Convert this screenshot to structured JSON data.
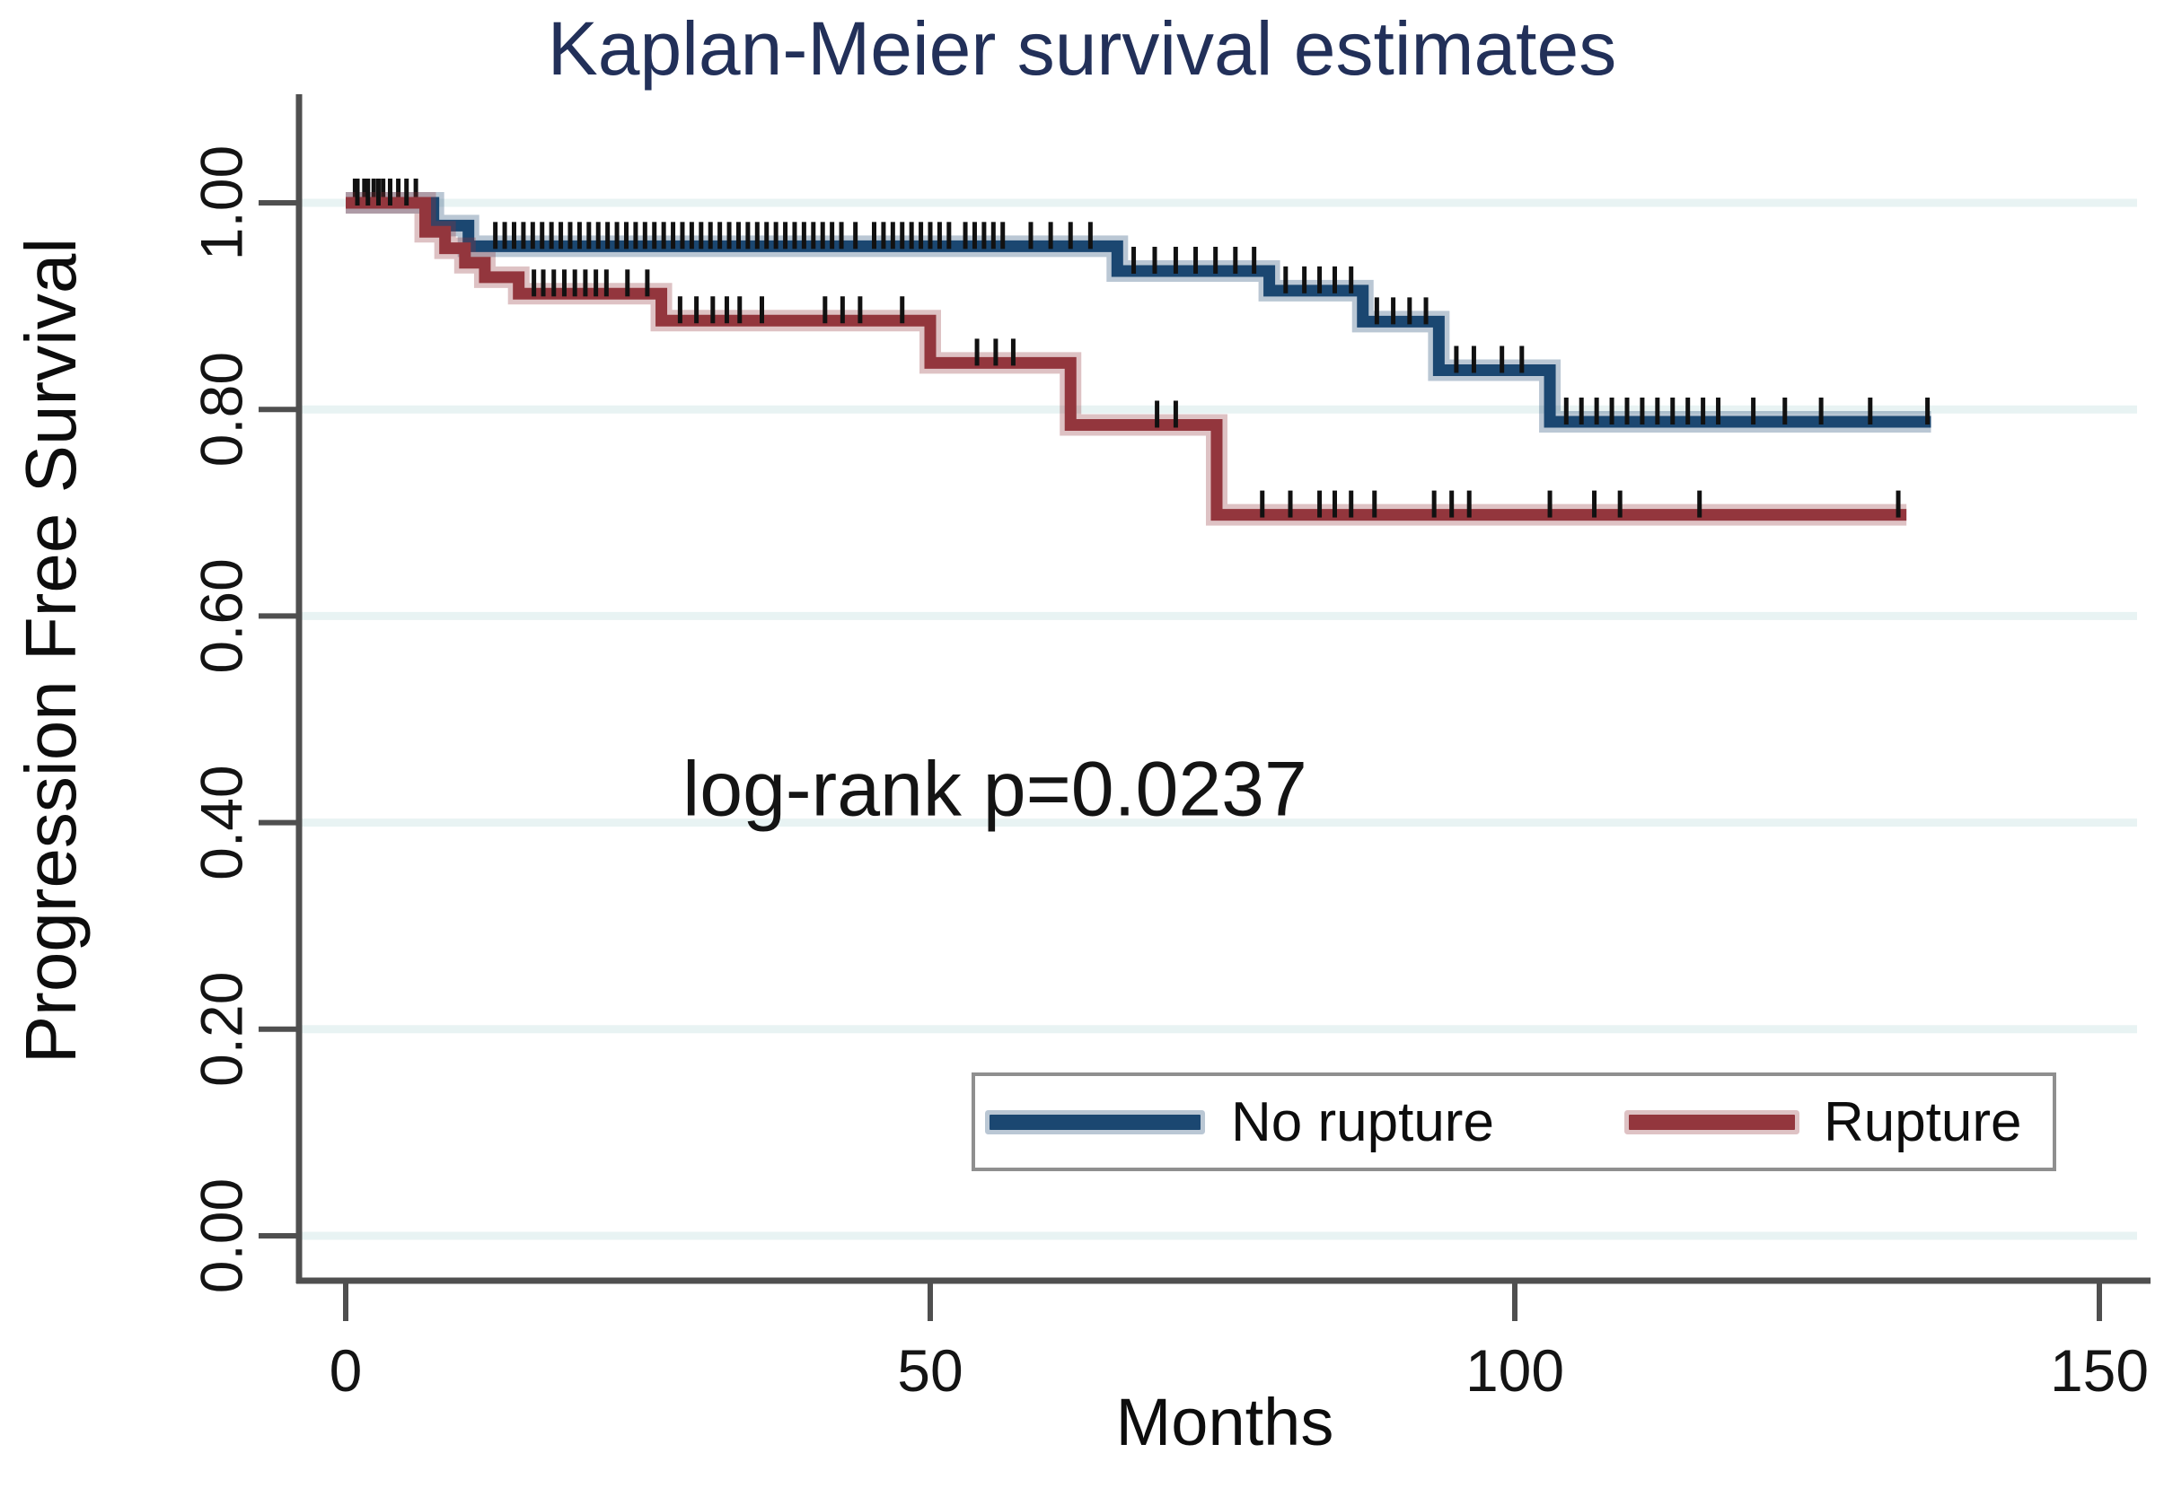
{
  "title": {
    "text": "Kaplan-Meier survival estimates",
    "color": "#223059"
  },
  "axes": {
    "y_label": "Progression Free Survival",
    "x_label": "Months",
    "y_tick_labels": [
      "1.00",
      "0.80",
      "0.60",
      "0.40",
      "0.20",
      "0.00"
    ],
    "x_tick_labels": [
      "0",
      "50",
      "100",
      "150"
    ]
  },
  "annotation": "log-rank p=0.0237",
  "legend": {
    "items": [
      {
        "label": "No rupture",
        "color": "#1b4771"
      },
      {
        "label": "Rupture",
        "color": "#93363d"
      }
    ]
  },
  "colors": {
    "grid": "#e8f3f3",
    "axis": "#4f4f4f",
    "censor": "#111111",
    "no_rupture": "#1b4771",
    "no_rupture_halo": "rgba(27,71,113,0.30)",
    "rupture": "#93363d",
    "rupture_halo": "rgba(147,54,61,0.30)"
  },
  "chart_data": {
    "type": "line",
    "subtype": "kaplan-meier-step",
    "title": "Kaplan-Meier survival estimates",
    "xlabel": "Months",
    "ylabel": "Progression Free Survival",
    "xlim": [
      0,
      150
    ],
    "ylim": [
      0.0,
      1.0
    ],
    "x_ticks": [
      [
        0,
        "0"
      ],
      [
        50,
        "50"
      ],
      [
        100,
        "100"
      ],
      [
        150,
        "150"
      ]
    ],
    "y_ticks": [
      [
        1.0,
        "1.00"
      ],
      [
        0.8,
        "0.80"
      ],
      [
        0.6,
        "0.60"
      ],
      [
        0.4,
        "0.40"
      ],
      [
        0.2,
        "0.20"
      ],
      [
        0.0,
        "0.00"
      ]
    ],
    "grid": "horizontal",
    "legend_position": "bottom-right-box",
    "annotation": {
      "text": "log-rank p=0.0237",
      "x_months": 55,
      "y_survival": 0.43
    },
    "series": [
      {
        "name": "No rupture",
        "steps": [
          [
            0,
            1.0
          ],
          [
            7.5,
            0.978
          ],
          [
            10.5,
            0.958
          ],
          [
            66,
            0.934
          ],
          [
            79,
            0.915
          ],
          [
            87,
            0.885
          ],
          [
            93.5,
            0.838
          ],
          [
            103,
            0.788
          ]
        ],
        "end_t": 135.6,
        "censors": [
          0.8,
          1.6,
          2.4,
          3.2,
          4.5,
          6.0,
          12.8,
          13.6,
          14.4,
          15.2,
          16.0,
          16.8,
          17.6,
          18.4,
          19.2,
          20.0,
          20.8,
          21.6,
          22.4,
          23.2,
          24.0,
          24.8,
          25.6,
          26.4,
          27.2,
          28.0,
          28.8,
          29.6,
          30.4,
          31.2,
          32.0,
          32.8,
          33.6,
          34.4,
          35.2,
          36.0,
          36.8,
          37.6,
          38.4,
          39.2,
          40.0,
          40.8,
          41.6,
          42.4,
          43.6,
          45.2,
          46.0,
          46.8,
          47.6,
          48.4,
          49.2,
          50.0,
          50.8,
          51.6,
          53.0,
          53.8,
          54.6,
          55.4,
          56.2,
          58.6,
          60.3,
          62.0,
          63.7,
          67.4,
          69.2,
          71.0,
          72.7,
          74.4,
          76.1,
          77.7,
          80.4,
          82.0,
          83.3,
          84.6,
          86.0,
          88.2,
          89.6,
          91.0,
          92.4,
          95.0,
          96.5,
          98.9,
          100.6,
          104.4,
          105.7,
          107.0,
          108.3,
          109.6,
          110.9,
          112.2,
          113.5,
          114.8,
          116.1,
          117.4,
          120.4,
          123.1,
          126.2,
          130.4,
          135.3
        ]
      },
      {
        "name": "Rupture",
        "steps": [
          [
            0,
            1.0
          ],
          [
            6.8,
            0.972
          ],
          [
            8.5,
            0.956
          ],
          [
            10.2,
            0.942
          ],
          [
            11.9,
            0.928
          ],
          [
            14.8,
            0.912
          ],
          [
            27,
            0.886
          ],
          [
            50,
            0.845
          ],
          [
            62,
            0.785
          ],
          [
            74.5,
            0.698
          ]
        ],
        "end_t": 133.5,
        "censors": [
          1.0,
          1.9,
          2.8,
          3.8,
          5.2,
          16.1,
          16.9,
          17.8,
          18.7,
          19.6,
          20.5,
          21.4,
          22.3,
          24.1,
          25.8,
          28.6,
          30.0,
          31.4,
          32.6,
          33.7,
          35.6,
          41.0,
          42.5,
          44.0,
          47.6,
          54.0,
          55.6,
          57.1,
          69.4,
          71.0,
          78.4,
          80.8,
          83.3,
          84.6,
          86.0,
          88.0,
          93.1,
          94.6,
          96.1,
          103.0,
          106.8,
          109.0,
          115.8,
          132.8
        ]
      }
    ]
  }
}
